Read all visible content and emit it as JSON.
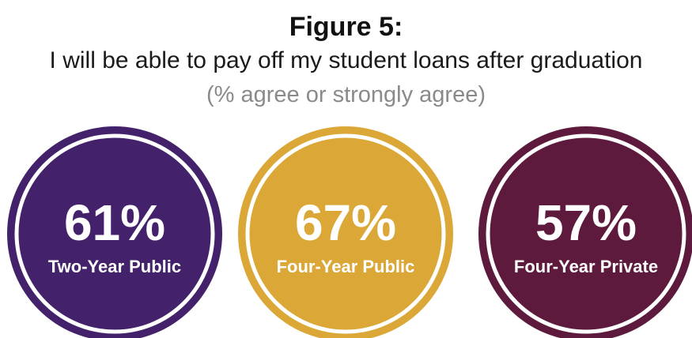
{
  "chart_data": {
    "type": "bar",
    "title": "Figure 5:",
    "subtitle": "I will be able to pay off my student loans after graduation",
    "note": "(% agree or strongly agree)",
    "unit": "%",
    "categories": [
      "Two-Year Public",
      "Four-Year Public",
      "Four-Year Private"
    ],
    "values": [
      61,
      67,
      57
    ],
    "colors": [
      "#44226b",
      "#dba838",
      "#5d1a3d"
    ]
  }
}
